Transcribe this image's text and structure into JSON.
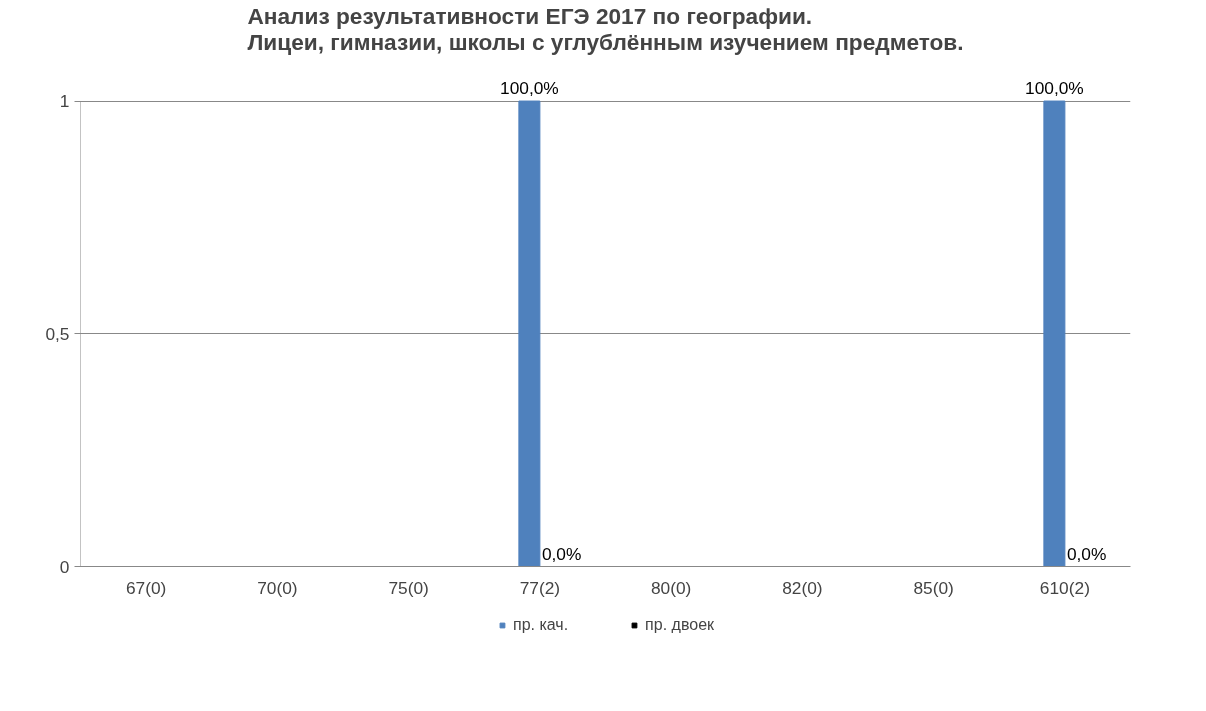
{
  "chart_data": {
    "type": "bar",
    "title": "Анализ результативности ЕГЭ 2017 по географии.\nЛицеи, гимназии, школы с углублённым изучением предметов.",
    "categories": [
      "67(0)",
      "70(0)",
      "75(0)",
      "77(2)",
      "80(0)",
      "82(0)",
      "85(0)",
      "610(2)"
    ],
    "series": [
      {
        "name": "пр. кач.",
        "color": "#4f81bd",
        "values": [
          null,
          null,
          null,
          1,
          null,
          null,
          null,
          1
        ],
        "value_labels": [
          null,
          null,
          null,
          "100,0%",
          null,
          null,
          null,
          "100,0%"
        ]
      },
      {
        "name": "пр. двоек",
        "color": "#000000",
        "values": [
          null,
          null,
          null,
          0,
          null,
          null,
          null,
          0
        ],
        "value_labels": [
          null,
          null,
          null,
          "0,0%",
          null,
          null,
          null,
          "0,0%"
        ]
      }
    ],
    "ylim": [
      0,
      1
    ],
    "yticks": [
      0,
      {
        "value": 0.5,
        "label": "0,5"
      },
      1
    ],
    "grid": "y",
    "legend": "bottom"
  }
}
